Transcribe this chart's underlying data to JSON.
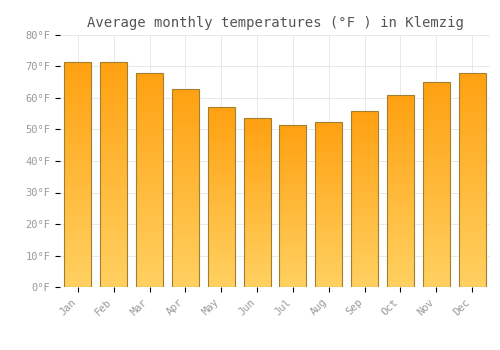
{
  "title": "Average monthly temperatures (°F ) in Klemzig",
  "months": [
    "Jan",
    "Feb",
    "Mar",
    "Apr",
    "May",
    "Jun",
    "Jul",
    "Aug",
    "Sep",
    "Oct",
    "Nov",
    "Dec"
  ],
  "values": [
    71.5,
    71.5,
    68.0,
    63.0,
    57.0,
    53.5,
    51.5,
    52.5,
    56.0,
    61.0,
    65.0,
    68.0
  ],
  "bar_color_bottom": "#FFD060",
  "bar_color_top": "#FFA010",
  "bar_edge_color": "#A08030",
  "ylim": [
    0,
    80
  ],
  "yticks": [
    0,
    10,
    20,
    30,
    40,
    50,
    60,
    70,
    80
  ],
  "ytick_labels": [
    "0°F",
    "10°F",
    "20°F",
    "30°F",
    "40°F",
    "50°F",
    "60°F",
    "70°F",
    "80°F"
  ],
  "background_color": "#FFFFFF",
  "grid_color": "#E8E8EE",
  "title_fontsize": 10,
  "tick_fontsize": 7.5,
  "bar_width": 0.75
}
